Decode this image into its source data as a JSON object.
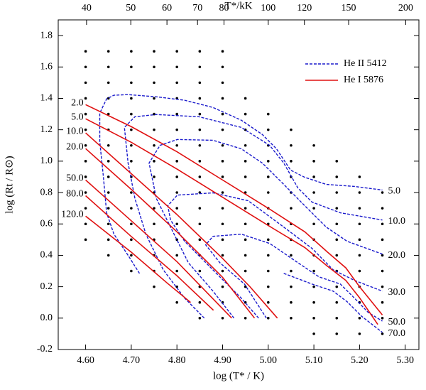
{
  "chart_data": {
    "type": "line",
    "xlabel": "log (T* / K)",
    "ylabel": "log (Rt / R⊙)",
    "x2label": "T*/kK",
    "xlim": [
      4.54,
      5.33
    ],
    "ylim": [
      -0.2,
      1.9
    ],
    "xticks": [
      {
        "value": 4.6,
        "label": "4.60"
      },
      {
        "value": 4.7,
        "label": "4.70"
      },
      {
        "value": 4.8,
        "label": "4.80"
      },
      {
        "value": 4.9,
        "label": "4.90"
      },
      {
        "value": 5.0,
        "label": "5.00"
      },
      {
        "value": 5.1,
        "label": "5.10"
      },
      {
        "value": 5.2,
        "label": "5.20"
      },
      {
        "value": 5.3,
        "label": "5.30"
      }
    ],
    "yticks": [
      -0.2,
      {
        "value": 0,
        "label": "0.0"
      },
      0.2,
      0.4,
      0.6,
      0.8,
      {
        "value": 1,
        "label": "1.0"
      },
      1.2,
      1.4,
      1.6,
      1.8
    ],
    "x2ticks": [
      40,
      50,
      60,
      70,
      80,
      100,
      120,
      150,
      200
    ],
    "legend": "upper right",
    "series": [
      {
        "name": "He II 5412",
        "color": "#1a1acc",
        "dashed": true,
        "label_side": "right",
        "contours": [
          {
            "label": "5.0",
            "x": [
              4.718,
              4.693,
              4.662,
              4.646,
              4.639,
              4.631,
              4.631,
              4.646,
              4.662,
              4.693,
              4.755,
              4.817,
              4.879,
              4.941,
              4.987,
              5.018,
              5.049,
              5.08,
              5.127,
              5.189,
              5.25
            ],
            "y": [
              0.285,
              0.4,
              0.535,
              0.671,
              0.898,
              1.124,
              1.306,
              1.397,
              1.42,
              1.424,
              1.41,
              1.388,
              1.342,
              1.261,
              1.17,
              1.079,
              0.943,
              0.897,
              0.852,
              0.839,
              0.816
            ]
          },
          {
            "label": "10.0",
            "x": [
              4.86,
              4.817,
              4.77,
              4.732,
              4.708,
              4.693,
              4.685,
              4.708,
              4.755,
              4.848,
              4.941,
              5.003,
              5.034,
              5.065,
              5.096,
              5.158,
              5.25
            ],
            "y": [
              0.0,
              0.127,
              0.308,
              0.535,
              0.762,
              0.988,
              1.215,
              1.283,
              1.297,
              1.283,
              1.215,
              1.101,
              0.988,
              0.829,
              0.739,
              0.671,
              0.625
            ]
          },
          {
            "label": "20.0",
            "x": [
              4.925,
              4.879,
              4.825,
              4.786,
              4.755,
              4.739,
              4.763,
              4.801,
              4.879,
              4.941,
              4.987,
              5.034,
              5.08,
              5.127,
              5.173,
              5.25
            ],
            "y": [
              0.0,
              0.172,
              0.353,
              0.58,
              0.762,
              0.988,
              1.101,
              1.138,
              1.133,
              1.079,
              0.988,
              0.852,
              0.716,
              0.58,
              0.489,
              0.408
            ]
          },
          {
            "label": "30.0",
            "x": [
              4.979,
              4.941,
              4.894,
              4.817,
              4.786,
              4.78,
              4.801,
              4.879,
              4.956,
              5.034,
              5.096,
              5.142,
              5.189,
              5.25
            ],
            "y": [
              0.0,
              0.127,
              0.263,
              0.489,
              0.625,
              0.716,
              0.784,
              0.798,
              0.748,
              0.58,
              0.444,
              0.308,
              0.24,
              0.172
            ]
          },
          {
            "label": "50.0",
            "x": [
              4.996,
              4.948,
              4.894,
              4.863,
              4.879,
              4.941,
              5.003,
              5.065,
              5.111,
              5.158,
              5.189,
              5.219,
              5.25
            ],
            "y": [
              0.0,
              0.217,
              0.353,
              0.467,
              0.521,
              0.535,
              0.476,
              0.353,
              0.263,
              0.217,
              0.127,
              0.036,
              -0.019
            ]
          },
          {
            "label": "70.0",
            "x": [
              5.034,
              5.096,
              5.142,
              5.173,
              5.204,
              5.25
            ],
            "y": [
              0.285,
              0.217,
              0.172,
              0.104,
              0.013,
              -0.091
            ]
          }
        ]
      },
      {
        "name": "He I 5876",
        "color": "#e01010",
        "dashed": false,
        "label_side": "left",
        "contours": [
          {
            "label": "2.0",
            "x": [
              4.6,
              4.7,
              4.8,
              4.9,
              5.0,
              5.08,
              5.13,
              5.17,
              5.2,
              5.25
            ],
            "y": [
              1.36,
              1.22,
              1.06,
              0.88,
              0.7,
              0.55,
              0.42,
              0.32,
              0.2,
              0.02
            ]
          },
          {
            "label": "5.0",
            "x": [
              4.6,
              4.7,
              4.8,
              4.9,
              5.0,
              5.08,
              5.13,
              5.17,
              5.2,
              5.24
            ],
            "y": [
              1.27,
              1.12,
              0.95,
              0.77,
              0.59,
              0.45,
              0.33,
              0.24,
              0.13,
              -0.04
            ]
          },
          {
            "label": "10.0",
            "x": [
              4.6,
              4.7,
              4.8,
              4.9,
              4.96,
              5.02
            ],
            "y": [
              1.18,
              0.92,
              0.66,
              0.38,
              0.2,
              0.0
            ]
          },
          {
            "label": "20.0",
            "x": [
              4.6,
              4.7,
              4.8,
              4.9,
              4.97
            ],
            "y": [
              1.08,
              0.82,
              0.55,
              0.26,
              0.0
            ]
          },
          {
            "label": "50.0",
            "x": [
              4.6,
              4.7,
              4.8,
              4.92
            ],
            "y": [
              0.88,
              0.62,
              0.36,
              0.0
            ]
          },
          {
            "label": "80.0",
            "x": [
              4.6,
              4.7,
              4.8,
              4.88
            ],
            "y": [
              0.78,
              0.52,
              0.27,
              0.05
            ]
          },
          {
            "label": "120.0",
            "x": [
              4.6,
              4.7,
              4.78,
              4.83
            ],
            "y": [
              0.65,
              0.42,
              0.22,
              0.1
            ]
          }
        ]
      }
    ],
    "models": [
      {
        "x": 4.6,
        "y": [
          1.7,
          1.6,
          1.5,
          1.4,
          1.3,
          1.2,
          1.1,
          1.0,
          0.9,
          0.8,
          0.7,
          0.6,
          0.5
        ]
      },
      {
        "x": 4.65,
        "y": [
          1.7,
          1.6,
          1.5,
          1.4,
          1.3,
          1.2,
          1.1,
          1.0,
          0.9,
          0.8,
          0.7,
          0.6,
          0.5,
          0.4
        ]
      },
      {
        "x": 4.7,
        "y": [
          1.7,
          1.6,
          1.5,
          1.4,
          1.3,
          1.2,
          1.1,
          1.0,
          0.9,
          0.8,
          0.7,
          0.6,
          0.5,
          0.4,
          0.3
        ]
      },
      {
        "x": 4.75,
        "y": [
          1.7,
          1.6,
          1.5,
          1.4,
          1.3,
          1.2,
          1.1,
          1.0,
          0.9,
          0.8,
          0.7,
          0.6,
          0.5,
          0.4,
          0.3,
          0.2
        ]
      },
      {
        "x": 4.8,
        "y": [
          1.7,
          1.6,
          1.5,
          1.4,
          1.3,
          1.2,
          1.1,
          1.0,
          0.9,
          0.8,
          0.7,
          0.6,
          0.5,
          0.4,
          0.3,
          0.2,
          0.1
        ]
      },
      {
        "x": 4.85,
        "y": [
          1.7,
          1.6,
          1.5,
          1.4,
          1.3,
          1.2,
          1.1,
          1.0,
          0.9,
          0.8,
          0.7,
          0.6,
          0.5,
          0.4,
          0.3,
          0.2,
          0.1,
          0.0
        ]
      },
      {
        "x": 4.9,
        "y": [
          1.7,
          1.6,
          1.5,
          1.4,
          1.3,
          1.2,
          1.1,
          1.0,
          0.9,
          0.8,
          0.7,
          0.6,
          0.5,
          0.4,
          0.3,
          0.2,
          0.1,
          0.0
        ]
      },
      {
        "x": 4.95,
        "y": [
          1.4,
          1.3,
          1.2,
          1.1,
          1.0,
          0.9,
          0.8,
          0.7,
          0.6,
          0.5,
          0.4,
          0.3,
          0.2,
          0.1,
          0.0
        ]
      },
      {
        "x": 5.0,
        "y": [
          1.3,
          1.2,
          1.1,
          1.0,
          0.9,
          0.8,
          0.7,
          0.6,
          0.5,
          0.4,
          0.3,
          0.2,
          0.1,
          0.0
        ]
      },
      {
        "x": 5.05,
        "y": [
          1.2,
          1.1,
          1.0,
          0.9,
          0.8,
          0.7,
          0.6,
          0.5,
          0.4,
          0.3,
          0.2,
          0.1,
          0.0
        ]
      },
      {
        "x": 5.1,
        "y": [
          1.1,
          1.0,
          0.9,
          0.8,
          0.7,
          0.6,
          0.5,
          0.4,
          0.3,
          0.2,
          0.1,
          0.0,
          -0.1
        ]
      },
      {
        "x": 5.15,
        "y": [
          1.0,
          0.9,
          0.8,
          0.7,
          0.6,
          0.5,
          0.4,
          0.3,
          0.2,
          0.1,
          0.0,
          -0.1
        ]
      },
      {
        "x": 5.2,
        "y": [
          0.9,
          0.8,
          0.7,
          0.6,
          0.5,
          0.4,
          0.3,
          0.2,
          0.1,
          0.0,
          -0.1
        ]
      },
      {
        "x": 5.25,
        "y": [
          0.8,
          0.7,
          0.6,
          0.5,
          0.4,
          0.3,
          0.2,
          0.1,
          0.0,
          -0.1
        ]
      }
    ]
  }
}
